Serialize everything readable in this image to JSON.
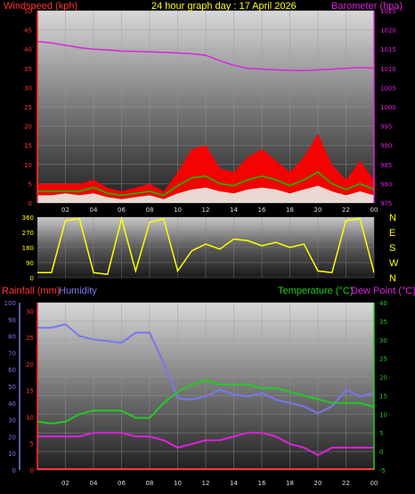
{
  "title": "24 hour graph day : 17 April 2026",
  "colors": {
    "wind": "#ff0000",
    "gust": "#ff0000",
    "avg": "#00cc00",
    "barometer": "#dd22dd",
    "direction": "#ffff00",
    "humidity": "#7777ee",
    "temperature": "#22cc22",
    "dewpoint": "#dd22dd",
    "rainfall": "#ff3333",
    "leftaxis": "#ff3333",
    "rightaxis": "#dd22dd",
    "greenaxis": "#22cc22",
    "compass": "#ffff00"
  },
  "chart_data": [
    {
      "type": "line",
      "panel": "wind-barometer",
      "labels": {
        "left": "Windspeed (kph)",
        "right": "Barometer (hpa)"
      },
      "x_ticks": [
        "02",
        "04",
        "06",
        "08",
        "10",
        "12",
        "14",
        "16",
        "18",
        "20",
        "22",
        "00"
      ],
      "left_ticks": [
        0,
        5,
        10,
        15,
        20,
        25,
        30,
        35,
        40,
        45,
        50
      ],
      "right_ticks": [
        975,
        980,
        985,
        990,
        995,
        1000,
        1005,
        1010,
        1015,
        1020,
        1025
      ],
      "ylim_left": [
        0,
        50
      ],
      "ylim_right": [
        975,
        1025
      ],
      "series": [
        {
          "role": "barometer",
          "x": [
            0,
            1,
            2,
            3,
            4,
            5,
            6,
            7,
            8,
            9,
            10,
            11,
            12,
            13,
            14,
            15,
            16,
            17,
            18,
            19,
            20,
            21,
            22,
            23,
            24
          ],
          "y": [
            1017,
            1016.6,
            1016,
            1015.4,
            1015,
            1014.8,
            1014.5,
            1014.4,
            1014.3,
            1014.2,
            1014,
            1013.8,
            1013.4,
            1012,
            1010.8,
            1010,
            1009.8,
            1009.6,
            1009.5,
            1009.4,
            1009.6,
            1009.8,
            1010,
            1010.2,
            1010
          ]
        },
        {
          "role": "gust",
          "x": [
            0,
            1,
            2,
            3,
            4,
            5,
            6,
            7,
            8,
            9,
            10,
            11,
            12,
            13,
            14,
            15,
            16,
            17,
            18,
            19,
            20,
            21,
            22,
            23,
            24
          ],
          "y": [
            5,
            5,
            5,
            5,
            6,
            4,
            3,
            4,
            5,
            3,
            8,
            14,
            15,
            9,
            8,
            12,
            14,
            11,
            8,
            12,
            18,
            10,
            6,
            11,
            6
          ]
        },
        {
          "role": "avg",
          "x": [
            0,
            1,
            2,
            3,
            4,
            5,
            6,
            7,
            8,
            9,
            10,
            11,
            12,
            13,
            14,
            15,
            16,
            17,
            18,
            19,
            20,
            21,
            22,
            23,
            24
          ],
          "y": [
            3,
            3,
            3,
            3,
            4,
            2.5,
            2,
            2.5,
            3,
            2,
            4.5,
            6.5,
            7,
            5,
            4.5,
            6,
            7,
            6,
            4.5,
            6,
            8,
            5,
            3.5,
            5,
            3.5
          ]
        },
        {
          "role": "wind",
          "x": [
            0,
            1,
            2,
            3,
            4,
            5,
            6,
            7,
            8,
            9,
            10,
            11,
            12,
            13,
            14,
            15,
            16,
            17,
            18,
            19,
            20,
            21,
            22,
            23,
            24
          ],
          "y": [
            2,
            2,
            2.5,
            2,
            2.5,
            1.5,
            1,
            1.5,
            2,
            1,
            2.5,
            3.5,
            4,
            3,
            2.5,
            3.5,
            4,
            3.5,
            2.5,
            3.5,
            4.5,
            3,
            2,
            3,
            2
          ]
        }
      ]
    },
    {
      "type": "scatter",
      "panel": "direction",
      "y_ticks": [
        0,
        90,
        180,
        270,
        360
      ],
      "compass": [
        "N",
        "W",
        "S",
        "E",
        "N"
      ],
      "ylim": [
        0,
        360
      ],
      "series": [
        {
          "role": "direction",
          "x": [
            0,
            1,
            2,
            3,
            4,
            5,
            6,
            7,
            8,
            9,
            10,
            11,
            12,
            13,
            14,
            15,
            16,
            17,
            18,
            19,
            20,
            21,
            22,
            23,
            24
          ],
          "y": [
            30,
            30,
            340,
            350,
            30,
            20,
            350,
            40,
            330,
            350,
            40,
            160,
            200,
            170,
            230,
            220,
            190,
            210,
            180,
            200,
            40,
            30,
            340,
            350,
            30
          ]
        }
      ]
    },
    {
      "type": "line",
      "panel": "temp-humidity",
      "labels": {
        "rain": "Rainfall (mm)",
        "humidity": "Humidity",
        "temperature": "Temperature (°C)",
        "dewpoint": "Dew Point (°C)"
      },
      "x_ticks": [
        "02",
        "04",
        "06",
        "08",
        "10",
        "12",
        "14",
        "16",
        "18",
        "20",
        "22",
        "00"
      ],
      "humidity_ticks": [
        0,
        10,
        20,
        30,
        40,
        50,
        60,
        70,
        80,
        90,
        100
      ],
      "rain_ticks": [
        0,
        5,
        10,
        15,
        20,
        25,
        30
      ],
      "temp_ticks": [
        -5,
        0,
        5,
        10,
        15,
        20,
        25,
        30,
        35,
        40
      ],
      "ylim_temp": [
        -5,
        40
      ],
      "series": [
        {
          "role": "humidity",
          "x": [
            0,
            1,
            2,
            3,
            4,
            5,
            6,
            7,
            8,
            9,
            10,
            11,
            12,
            13,
            14,
            15,
            16,
            17,
            18,
            19,
            20,
            21,
            22,
            23,
            24
          ],
          "y": [
            85,
            85,
            87,
            80,
            78,
            77,
            76,
            82,
            82,
            64,
            43,
            42,
            44,
            48,
            45,
            44,
            46,
            42,
            40,
            38,
            34,
            38,
            48,
            44,
            46
          ]
        },
        {
          "role": "temperature",
          "x": [
            0,
            1,
            2,
            3,
            4,
            5,
            6,
            7,
            8,
            9,
            10,
            11,
            12,
            13,
            14,
            15,
            16,
            17,
            18,
            19,
            20,
            21,
            22,
            23,
            24
          ],
          "y": [
            8,
            7.5,
            8,
            10,
            11,
            11,
            11,
            9,
            9,
            13,
            16,
            18,
            19,
            18,
            18,
            18,
            17,
            17,
            16,
            15,
            14,
            13,
            13,
            13,
            12
          ]
        },
        {
          "role": "dewpoint",
          "x": [
            0,
            1,
            2,
            3,
            4,
            5,
            6,
            7,
            8,
            9,
            10,
            11,
            12,
            13,
            14,
            15,
            16,
            17,
            18,
            19,
            20,
            21,
            22,
            23,
            24
          ],
          "y": [
            4,
            4,
            4,
            4,
            5,
            5,
            5,
            4,
            4,
            3,
            1,
            2,
            3,
            3,
            4,
            5,
            5,
            4,
            2,
            1,
            -1,
            1,
            1,
            1,
            1
          ]
        }
      ]
    }
  ]
}
